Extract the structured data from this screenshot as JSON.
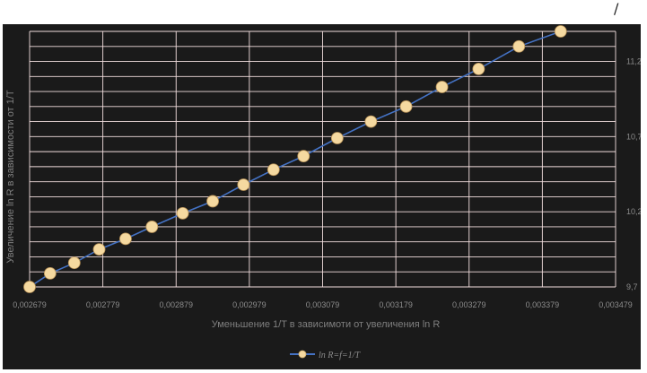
{
  "corner_mark": "/",
  "chart_data": {
    "type": "scatter",
    "xlabel": "Уменьшение 1/T в зависимоти от увеличения ln R",
    "ylabel": "Увеличение ln R в зависимости от 1/T",
    "xlim": [
      0.002679,
      0.003479
    ],
    "ylim": [
      9.7,
      11.4
    ],
    "x_ticks": [
      "0,002679",
      "0,002779",
      "0,002879",
      "0,002979",
      "0,003079",
      "0,003179",
      "0,003279",
      "0,003379",
      "0,003479"
    ],
    "y_ticks": [
      "9,7",
      "10,2",
      "10,7",
      "11,2"
    ],
    "y_axis_side": "right",
    "grid": true,
    "legend_position": "bottom",
    "series": [
      {
        "name": "ln R=f=1/T",
        "color": "#4472c4",
        "marker_color": "#f5d9a0",
        "x": [
          0.002679,
          0.002707,
          0.00274,
          0.002774,
          0.00281,
          0.002846,
          0.002888,
          0.002929,
          0.002971,
          0.003012,
          0.003053,
          0.003099,
          0.003145,
          0.003193,
          0.003242,
          0.003292,
          0.003347,
          0.003404
        ],
        "y": [
          9.7,
          9.79,
          9.86,
          9.95,
          10.02,
          10.1,
          10.19,
          10.27,
          10.38,
          10.48,
          10.57,
          10.69,
          10.8,
          10.9,
          11.03,
          11.15,
          11.3,
          11.4
        ]
      }
    ]
  }
}
